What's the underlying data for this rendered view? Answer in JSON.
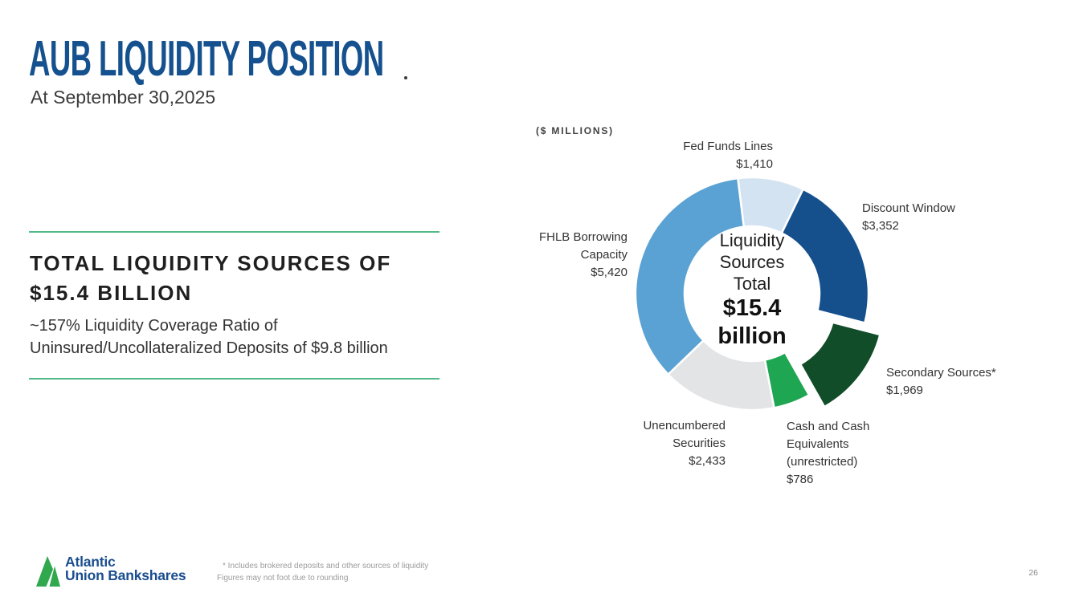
{
  "slide": {
    "title": "AUB LIQUIDITY POSITION",
    "subtitle": "At September 30,2025",
    "page_number": "26"
  },
  "highlight": {
    "heading_line1": "TOTAL LIQUIDITY SOURCES OF",
    "heading_line2": "$15.4 BILLION",
    "body_line1": "~157% Liquidity Coverage Ratio of",
    "body_line2": "Uninsured/Uncollateralized Deposits of $9.8 billion",
    "accent_rule_color": "#53b98a"
  },
  "chart_data": {
    "type": "pie",
    "subtype": "donut",
    "units_label": "($ MILLIONS)",
    "total_value": 15370,
    "start_angle_deg": -7,
    "legend_position": "callout-labels",
    "center_label": {
      "lines": [
        "Liquidity",
        "Sources",
        "Total"
      ],
      "value_line1": "$15.4",
      "value_line2": "billion"
    },
    "segments": [
      {
        "id": "fed-funds-lines",
        "label_lines": [
          "Fed Funds Lines"
        ],
        "value": 1410,
        "value_display": "$1,410",
        "color": "#d3e3f1",
        "exploded": false
      },
      {
        "id": "discount-window",
        "label_lines": [
          "Discount Window"
        ],
        "value": 3352,
        "value_display": "$3,352",
        "color": "#15508d",
        "exploded": false
      },
      {
        "id": "secondary-sources",
        "label_lines": [
          "Secondary Sources*"
        ],
        "value": 1969,
        "value_display": "$1,969",
        "color": "#114d28",
        "exploded": true
      },
      {
        "id": "cash-and-cash-equivalents",
        "label_lines": [
          "Cash and Cash",
          "Equivalents",
          "(unrestricted)"
        ],
        "value": 786,
        "value_display": "$786",
        "color": "#1fa653",
        "exploded": false
      },
      {
        "id": "unencumbered-securities",
        "label_lines": [
          "Unencumbered",
          "Securities"
        ],
        "value": 2433,
        "value_display": "$2,433",
        "color": "#e3e4e6",
        "exploded": false
      },
      {
        "id": "fhlb-borrowing-capacity",
        "label_lines": [
          "FHLB Borrowing",
          "Capacity"
        ],
        "value": 5420,
        "value_display": "$5,420",
        "color": "#5aa2d3",
        "exploded": false
      }
    ]
  },
  "footer": {
    "logo_line1": "Atlantic",
    "logo_line2": "Union Bankshares",
    "logo_green": "#2fa84e",
    "logo_blue": "#1b4e8f",
    "footnote_line1": "* Includes brokered deposits and other sources of liquidity",
    "footnote_line2": "Figures may not foot due to rounding"
  }
}
